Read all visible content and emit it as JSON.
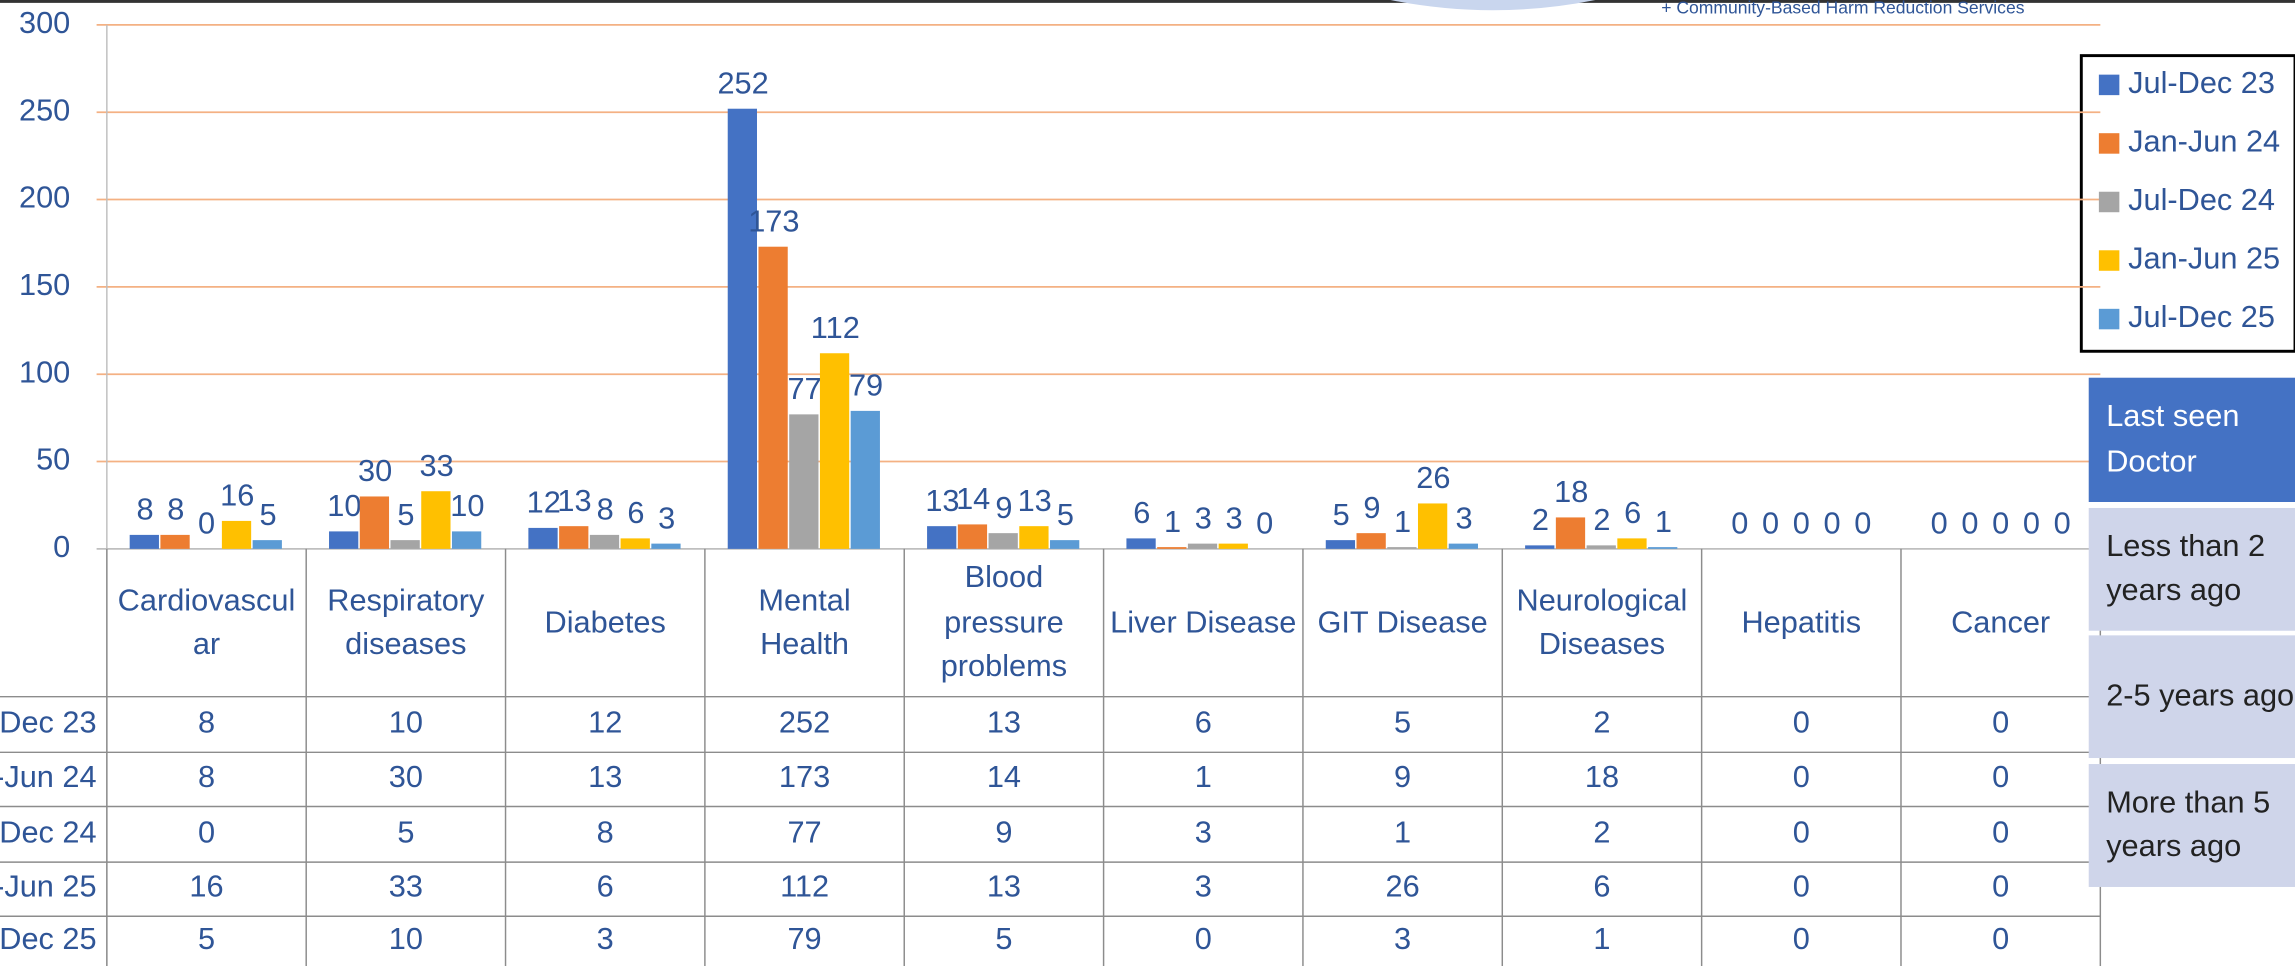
{
  "header": {
    "note": "+ Community-Based Harm Reduction Services"
  },
  "chart_data": {
    "type": "bar",
    "categories": [
      "Cardiovascular",
      "Respiratory diseases",
      "Diabetes",
      "Mental Health",
      "Blood pressure problems",
      "Liver Disease",
      "GIT Disease",
      "Neurological Diseases",
      "Hepatitis",
      "Cancer"
    ],
    "series": [
      {
        "name": "Jul-Dec 23",
        "color": "#4472c4",
        "values": [
          8,
          10,
          12,
          252,
          13,
          6,
          5,
          2,
          0,
          0
        ]
      },
      {
        "name": "Jan-Jun 24",
        "color": "#ed7d31",
        "values": [
          8,
          30,
          13,
          173,
          14,
          1,
          9,
          18,
          0,
          0
        ]
      },
      {
        "name": "Jul-Dec 24",
        "color": "#a5a5a5",
        "values": [
          0,
          5,
          8,
          77,
          9,
          3,
          1,
          2,
          0,
          0
        ]
      },
      {
        "name": "Jan-Jun 25",
        "color": "#ffc000",
        "values": [
          16,
          33,
          6,
          112,
          13,
          3,
          26,
          6,
          0,
          0
        ]
      },
      {
        "name": "Jul-Dec 25",
        "color": "#5b9bd5",
        "values": [
          5,
          10,
          3,
          79,
          5,
          0,
          3,
          1,
          0,
          0
        ]
      }
    ],
    "ylim": [
      0,
      300
    ],
    "yticks": [
      0,
      50,
      100,
      150,
      200,
      250,
      300
    ],
    "grid": true,
    "legend": "right"
  },
  "side_panel": {
    "title": "Last seen Doctor",
    "items": [
      "Less than 2 years ago",
      "2-5 years ago",
      "More than 5 years ago"
    ]
  }
}
